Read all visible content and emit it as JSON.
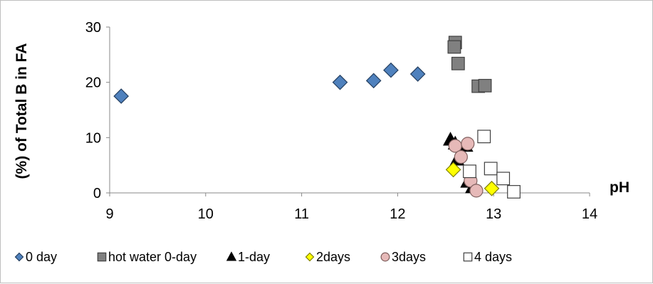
{
  "chart_data": {
    "type": "scatter",
    "title": "",
    "xlabel": "pH",
    "ylabel": "(%) of Total B in FA",
    "xlim": [
      9,
      14
    ],
    "ylim": [
      0,
      30
    ],
    "x_ticks": [
      "9",
      "10",
      "11",
      "12",
      "13",
      "14"
    ],
    "y_ticks": [
      "0",
      "10",
      "20",
      "30"
    ],
    "grid": false,
    "legend_position": "bottom",
    "series": [
      {
        "name": "0 day",
        "marker": "diamond",
        "fill": "#4f81bd",
        "stroke": "#243f60",
        "points": [
          [
            9.12,
            17.5
          ],
          [
            11.4,
            20.0
          ],
          [
            11.75,
            20.3
          ],
          [
            11.93,
            22.2
          ],
          [
            12.21,
            21.5
          ]
        ]
      },
      {
        "name": "hot water 0-day",
        "marker": "square",
        "fill": "#808080",
        "stroke": "#404040",
        "points": [
          [
            12.6,
            27.2
          ],
          [
            12.59,
            26.4
          ],
          [
            12.63,
            23.4
          ],
          [
            12.84,
            19.3
          ],
          [
            12.91,
            19.4
          ]
        ]
      },
      {
        "name": "1-day",
        "marker": "triangle",
        "fill": "#000000",
        "stroke": "#000000",
        "points": [
          [
            12.55,
            9.6
          ],
          [
            12.6,
            8.9
          ],
          [
            12.71,
            8.5
          ],
          [
            12.62,
            6.0
          ],
          [
            12.73,
            2.0
          ],
          [
            12.78,
            1.0
          ]
        ]
      },
      {
        "name": "2days",
        "marker": "diamond",
        "fill": "#ffff00",
        "stroke": "#808000",
        "points": [
          [
            12.58,
            4.2
          ],
          [
            12.98,
            0.8
          ]
        ]
      },
      {
        "name": "3days",
        "marker": "circle",
        "fill": "#e6b9b8",
        "stroke": "#7f5f5e",
        "points": [
          [
            12.6,
            8.5
          ],
          [
            12.73,
            8.9
          ],
          [
            12.66,
            6.5
          ],
          [
            12.76,
            2.2
          ],
          [
            12.82,
            0.4
          ]
        ]
      },
      {
        "name": "4 days",
        "marker": "square",
        "fill": "#ffffff",
        "stroke": "#404040",
        "points": [
          [
            12.9,
            10.2
          ],
          [
            12.75,
            3.9
          ],
          [
            12.97,
            4.4
          ],
          [
            13.1,
            2.6
          ],
          [
            13.21,
            0.2
          ]
        ]
      }
    ]
  }
}
